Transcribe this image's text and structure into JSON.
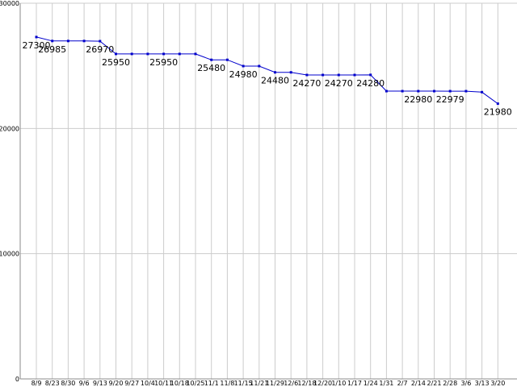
{
  "chart_data": {
    "type": "line",
    "title": "",
    "xlabel": "",
    "ylabel": "",
    "ylim": [
      0,
      30000
    ],
    "yticks": [
      "0",
      "10000",
      "20000",
      "30000"
    ],
    "ytick_values": [
      0,
      10000,
      20000,
      30000
    ],
    "grid": true,
    "legend": "none",
    "colors": {
      "line": "#0000cc",
      "grid": "#cccccc",
      "axis": "#888888",
      "background": "#ffffff"
    },
    "categories": [
      "8/9",
      "8/23",
      "8/30",
      "9/6",
      "9/13",
      "9/20",
      "9/27",
      "10/4",
      "10/11",
      "10/18",
      "10/25",
      "11/1",
      "11/8",
      "11/15",
      "11/21",
      "11/29",
      "12/6",
      "12/18",
      "12/20",
      "1/10",
      "1/17",
      "1/24",
      "1/31",
      "2/7",
      "2/14",
      "2/21",
      "2/28",
      "3/6",
      "3/13",
      "3/20"
    ],
    "x_labels_printed": [
      "8/9",
      "8/23",
      "8/30",
      "9/6",
      "9/13",
      "9/20",
      "9/27",
      "10/4",
      "10/11",
      "10/18",
      "10/25",
      "11/1",
      "11/8",
      "11/15",
      "11/21",
      "11/29",
      "12/6",
      "12/18",
      "12/20",
      "1/10",
      "1/17",
      "1/24",
      "1/31",
      "2/7",
      "2/14",
      "2/21",
      "2/28",
      "3/6",
      "3/13",
      "3/20"
    ],
    "series": [
      {
        "values": [
          27300,
          26985,
          26985,
          26985,
          26970,
          25950,
          25950,
          25950,
          25950,
          25950,
          25950,
          25480,
          25480,
          24980,
          24980,
          24480,
          24480,
          24270,
          24270,
          24270,
          24270,
          24280,
          22980,
          22980,
          22980,
          22980,
          22979,
          22979,
          22900,
          21980
        ],
        "labels": [
          "27300",
          "26985",
          "",
          "",
          "26970",
          "25950",
          "",
          "",
          "25950",
          "",
          "",
          "25480",
          "",
          "24980",
          "",
          "24480",
          "",
          "24270",
          "",
          "24270",
          "",
          "24280",
          "",
          "",
          "22980",
          "",
          "22979",
          "",
          "",
          "21980"
        ]
      }
    ]
  }
}
